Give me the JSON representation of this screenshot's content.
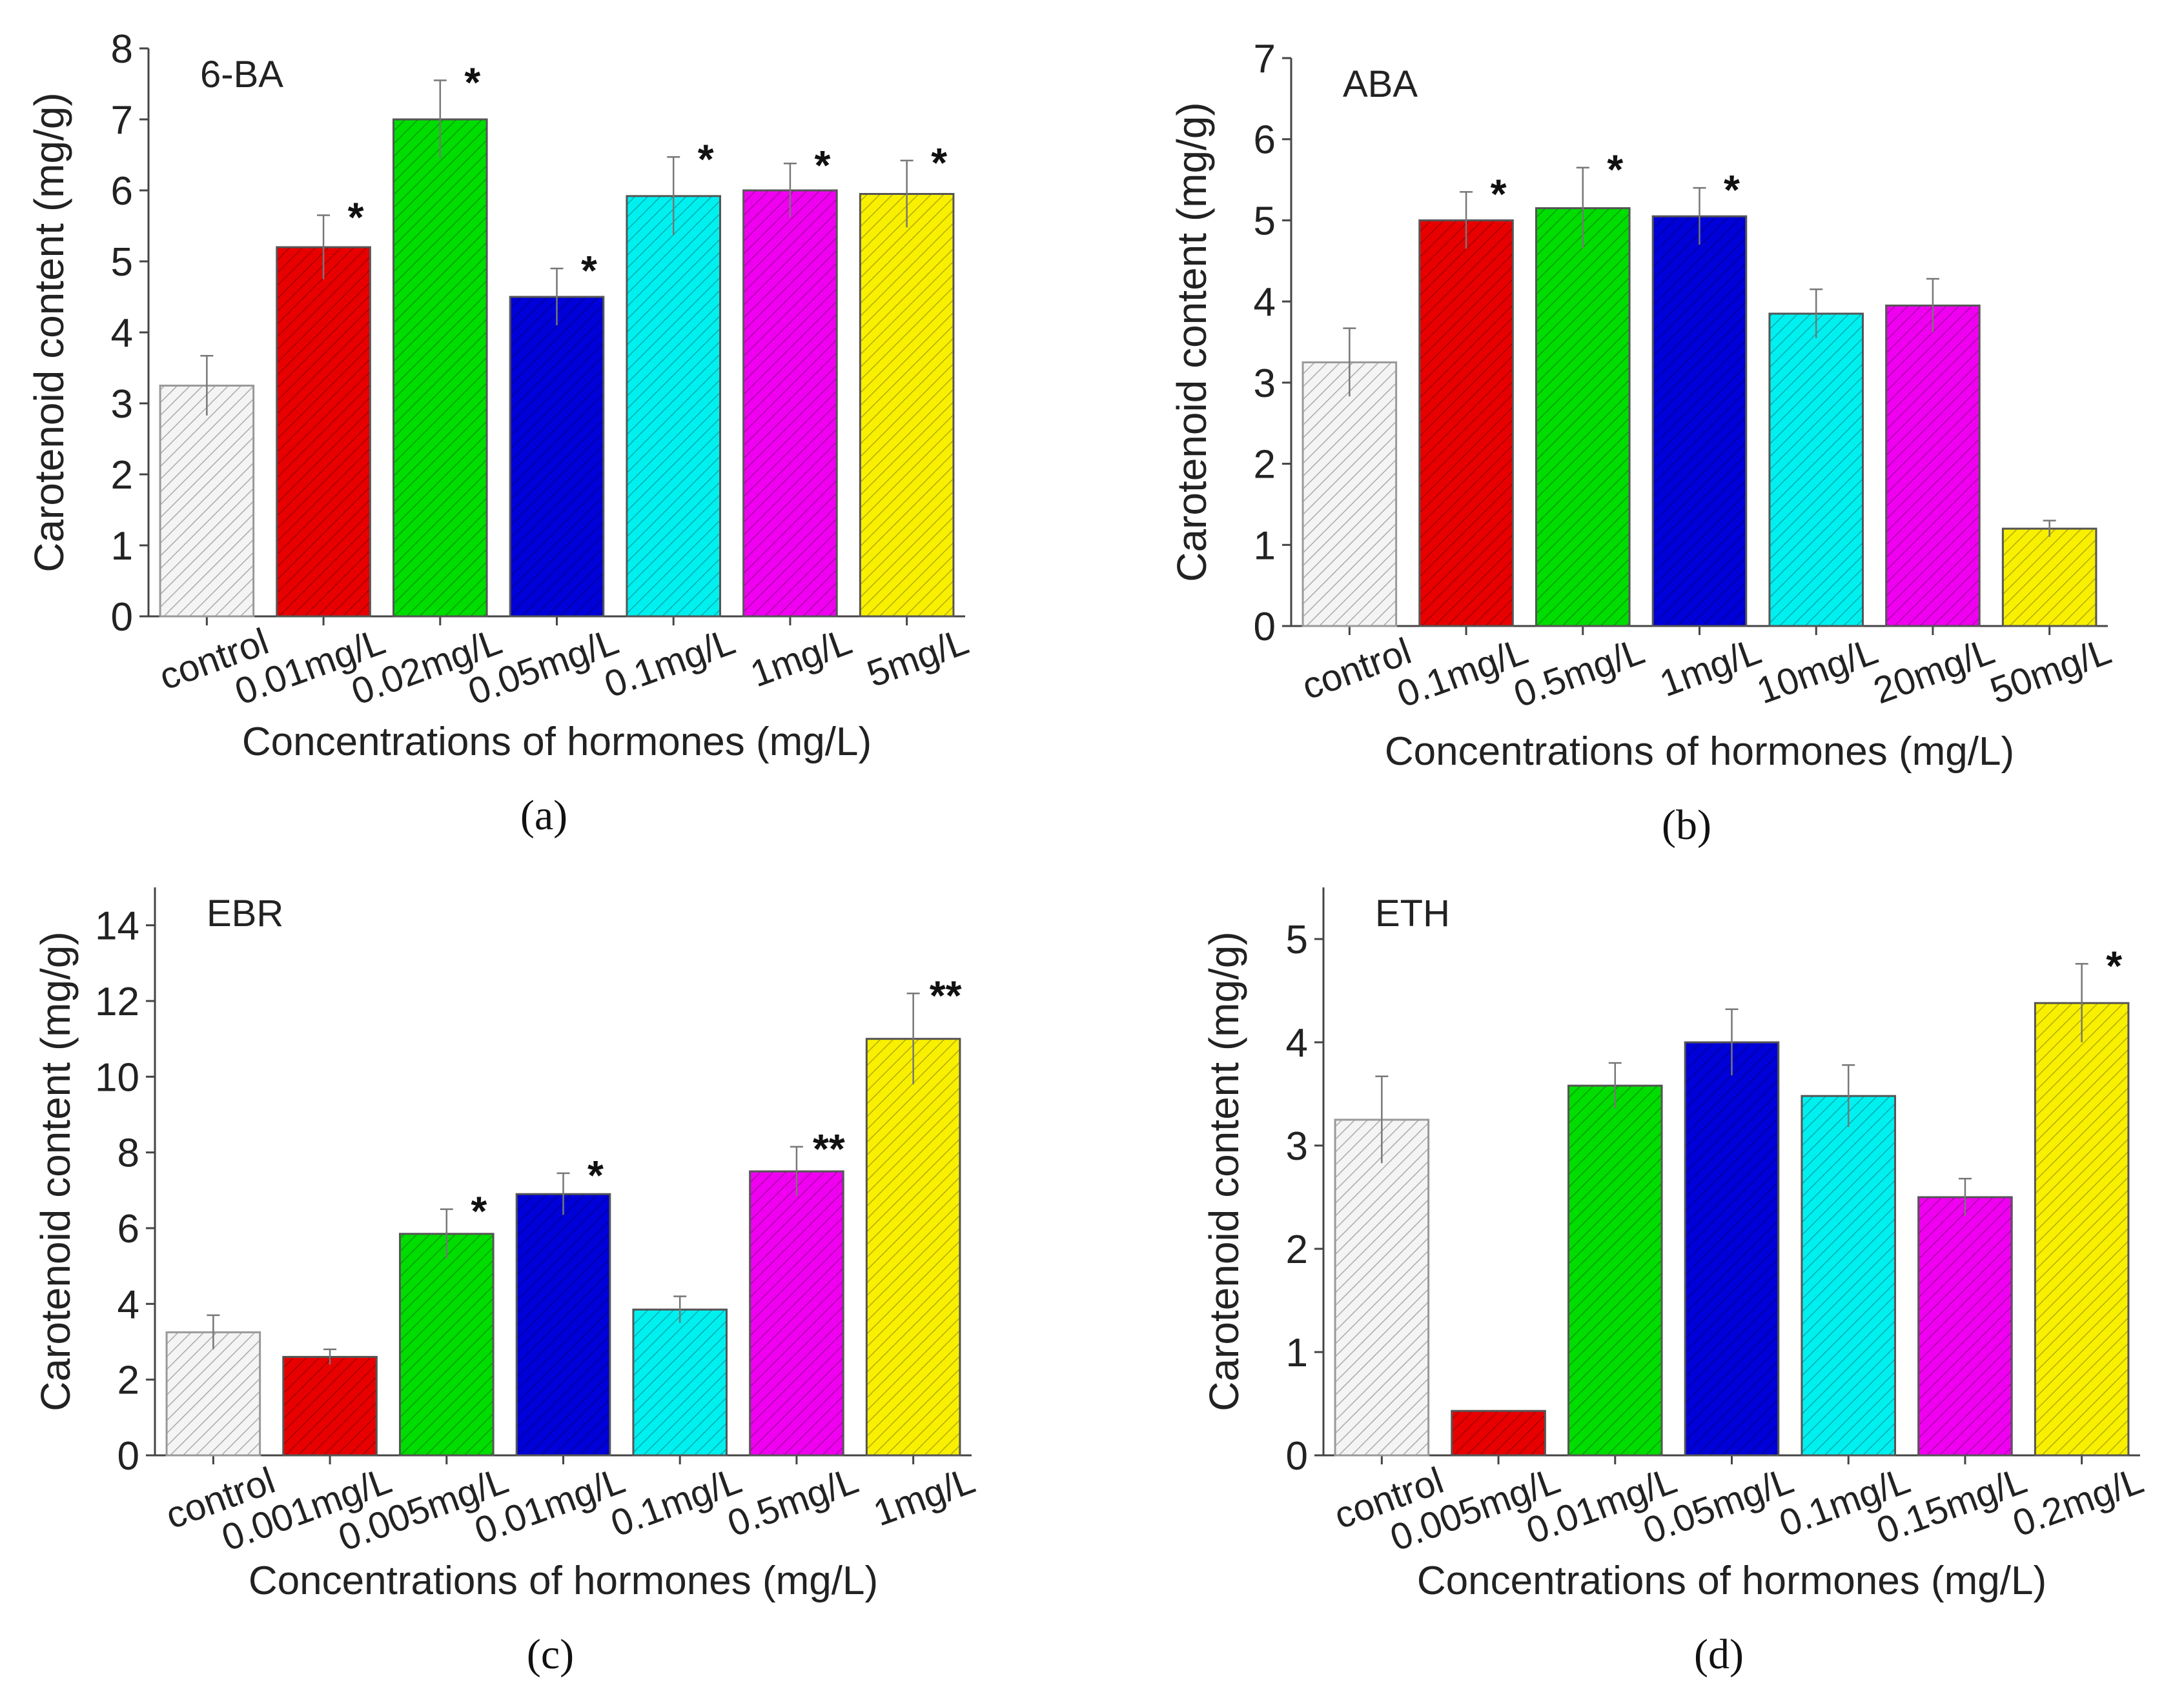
{
  "chart_data": [
    {
      "type": "bar",
      "panel_label": "(a)",
      "title": "6-BA",
      "xlabel": "Concentrations of hormones (mg/L)",
      "ylabel": "Carotenoid  content (mg/g)",
      "ylim": [
        0,
        8
      ],
      "yticks": [
        0,
        1,
        2,
        3,
        4,
        5,
        6,
        7,
        8
      ],
      "categories": [
        "control",
        "0.01mg/L",
        "0.02mg/L",
        "0.05mg/L",
        "0.1mg/L",
        "1mg/L",
        "5mg/L"
      ],
      "values": [
        3.25,
        5.2,
        7.0,
        4.5,
        5.92,
        6.0,
        5.95
      ],
      "errors": [
        0.42,
        0.45,
        0.55,
        0.4,
        0.55,
        0.38,
        0.47
      ],
      "significance": [
        "",
        "*",
        "*",
        "*",
        "*",
        "*",
        "*"
      ]
    },
    {
      "type": "bar",
      "panel_label": "(b)",
      "title": "ABA",
      "xlabel": "Concentrations of hormones (mg/L)",
      "ylabel": "Carotenoid  content (mg/g)",
      "ylim": [
        0,
        7
      ],
      "yticks": [
        0,
        1,
        2,
        3,
        4,
        5,
        6,
        7
      ],
      "categories": [
        "control",
        "0.1mg/L",
        "0.5mg/L",
        "1mg/L",
        "10mg/L",
        "20mg/L",
        "50mg/L"
      ],
      "values": [
        3.25,
        5.0,
        5.15,
        5.05,
        3.85,
        3.95,
        1.2
      ],
      "errors": [
        0.42,
        0.35,
        0.5,
        0.35,
        0.3,
        0.33,
        0.1
      ],
      "significance": [
        "",
        "*",
        "*",
        "*",
        "",
        "",
        ""
      ]
    },
    {
      "type": "bar",
      "panel_label": "(c)",
      "title": "EBR",
      "xlabel": "Concentrations of hormones (mg/L)",
      "ylabel": "Carotenoid  content (mg/g)",
      "ylim": [
        0,
        15
      ],
      "yticks": [
        0,
        2,
        4,
        6,
        8,
        10,
        12,
        14
      ],
      "categories": [
        "control",
        "0.001mg/L",
        "0.005mg/L",
        "0.01mg/L",
        "0.1mg/L",
        "0.5mg/L",
        "1mg/L"
      ],
      "values": [
        3.25,
        2.6,
        5.85,
        6.9,
        3.85,
        7.5,
        11.0
      ],
      "errors": [
        0.45,
        0.2,
        0.65,
        0.55,
        0.35,
        0.65,
        1.2
      ],
      "significance": [
        "",
        "",
        "*",
        "*",
        "",
        "**",
        "**"
      ]
    },
    {
      "type": "bar",
      "panel_label": "(d)",
      "title": "ETH",
      "xlabel": "Concentrations of hormones (mg/L)",
      "ylabel": "Carotenoid  content (mg/g)",
      "ylim": [
        0,
        5.5
      ],
      "yticks": [
        0,
        1,
        2,
        3,
        4,
        5
      ],
      "categories": [
        "control",
        "0.005mg/L",
        "0.01mg/L",
        "0.05mg/L",
        "0.1mg/L",
        "0.15mg/L",
        "0.2mg/L"
      ],
      "values": [
        3.25,
        0.43,
        3.58,
        4.0,
        3.48,
        2.5,
        4.38
      ],
      "errors": [
        0.42,
        0,
        0.22,
        0.32,
        0.3,
        0.18,
        0.38
      ],
      "significance": [
        "",
        "",
        "",
        "",
        "",
        "",
        "*"
      ]
    }
  ],
  "bar_colors": [
    "#f4f4f4",
    "#e80000",
    "#00dd00",
    "#0000d8",
    "#00f0f0",
    "#f000f0",
    "#f8f000"
  ]
}
